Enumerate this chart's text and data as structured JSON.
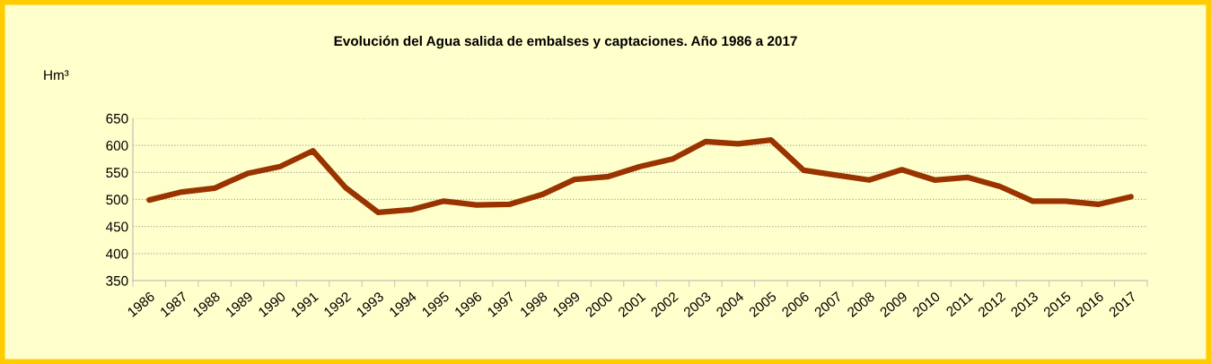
{
  "chart_data": {
    "type": "line",
    "title": "Evolución del Agua salida de embalses y captaciones. Año 1986 a 2017",
    "ylabel": "Hm³",
    "categories": [
      "1986",
      "1987",
      "1988",
      "1989",
      "1990",
      "1991",
      "1992",
      "1993",
      "1994",
      "1995",
      "1996",
      "1997",
      "1998",
      "1999",
      "2000",
      "2001",
      "2002",
      "2003",
      "2004",
      "2005",
      "2006",
      "2007",
      "2008",
      "2009",
      "2010",
      "2011",
      "2012",
      "2013",
      "2015",
      "2016",
      "2017"
    ],
    "series": [
      {
        "color": "#993300",
        "values": [
          499,
          514,
          521,
          548,
          561,
          590,
          522,
          476,
          481,
          497,
          490,
          491,
          509,
          537,
          542,
          561,
          575,
          607,
          603,
          610,
          554,
          545,
          536,
          555,
          536,
          541,
          524,
          497,
          497,
          491,
          505
        ]
      }
    ],
    "ylim": [
      350,
      650
    ],
    "yticks": [
      350,
      400,
      450,
      500,
      550,
      600,
      650
    ],
    "grid": "y",
    "marker": "none",
    "line_style": "solid"
  }
}
